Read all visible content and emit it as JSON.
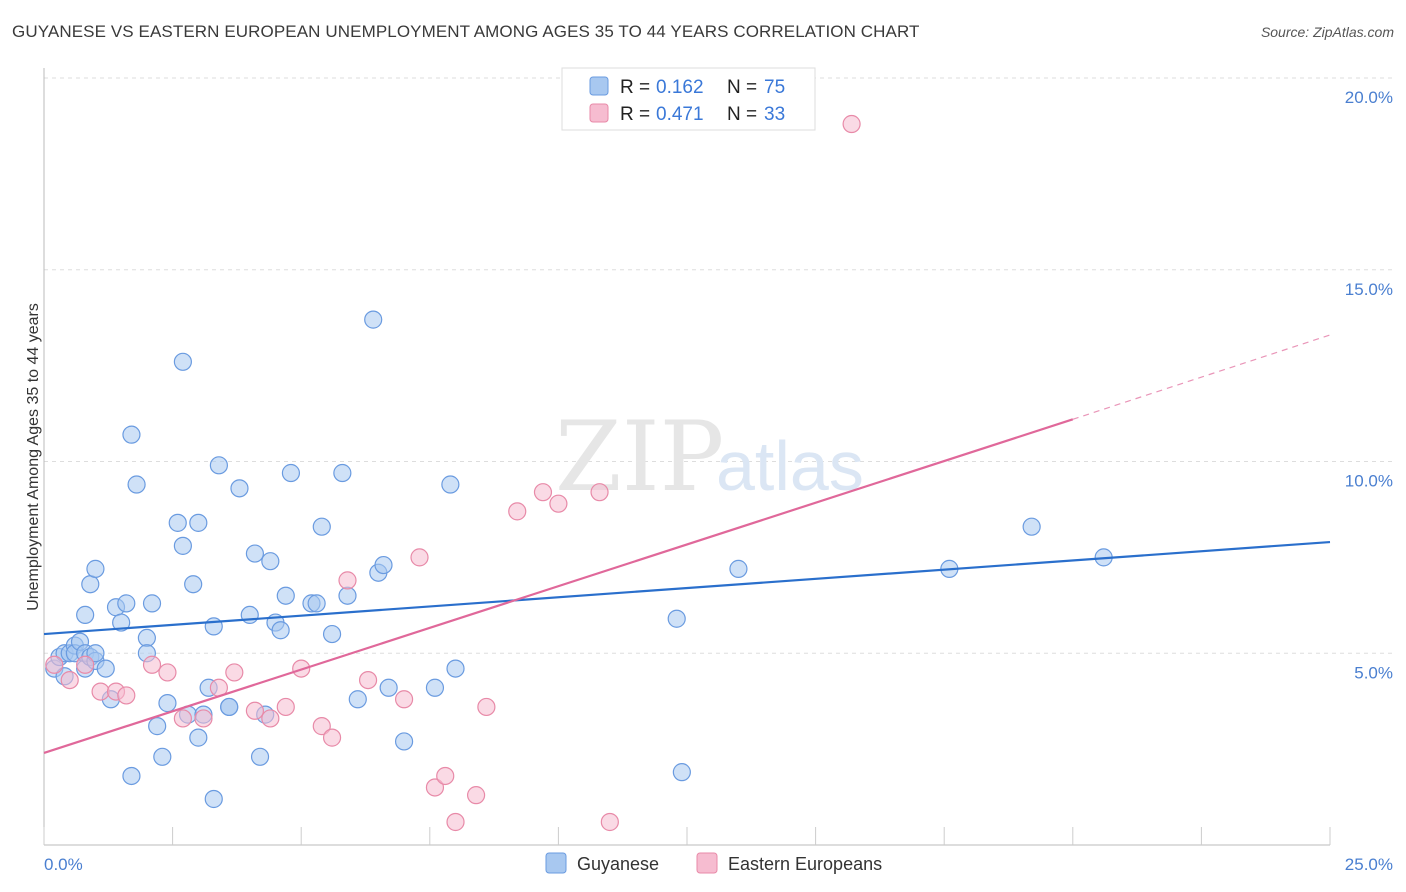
{
  "title": "GUYANESE VS EASTERN EUROPEAN UNEMPLOYMENT AMONG AGES 35 TO 44 YEARS CORRELATION CHART",
  "source": "Source: ZipAtlas.com",
  "watermark": {
    "zip": "ZIP",
    "atlas": "atlas"
  },
  "colors": {
    "blue_fill": "#a8c8f0",
    "blue_stroke": "#6a9be0",
    "blue_line": "#2a6fcc",
    "pink_fill": "#f6bcd0",
    "pink_stroke": "#e88aa8",
    "pink_line": "#e0689a",
    "grid": "#dddddd",
    "axis_text": "#4a7fd0"
  },
  "legend": {
    "rows": [
      {
        "r_label": "R =",
        "r_value": "0.162",
        "n_label": "N =",
        "n_value": "75"
      },
      {
        "r_label": "R =",
        "r_value": "0.471",
        "n_label": "N =",
        "n_value": "33"
      }
    ]
  },
  "chart_data": {
    "type": "scatter",
    "xlabel": "",
    "ylabel": "Unemployment Among Ages 35 to 44 years",
    "xlim": [
      0,
      25
    ],
    "ylim": [
      0,
      20
    ],
    "x_tick_labels": [
      "0.0%",
      "25.0%"
    ],
    "y_ticks": [
      5,
      10,
      15,
      20
    ],
    "y_tick_labels": [
      "5.0%",
      "10.0%",
      "15.0%",
      "20.0%"
    ],
    "grid": true,
    "legend_position": "bottom",
    "series": [
      {
        "name": "Guyanese",
        "r": 0.162,
        "n": 75,
        "trend": {
          "x0": 0,
          "y0": 5.5,
          "x1": 25,
          "y1": 7.9
        },
        "points": [
          [
            0.2,
            4.6
          ],
          [
            0.3,
            4.9
          ],
          [
            0.4,
            5.0
          ],
          [
            0.5,
            5.0
          ],
          [
            0.6,
            5.2
          ],
          [
            0.6,
            5.0
          ],
          [
            0.7,
            5.3
          ],
          [
            0.8,
            4.6
          ],
          [
            0.8,
            5.0
          ],
          [
            0.9,
            4.9
          ],
          [
            1.0,
            4.8
          ],
          [
            1.0,
            5.0
          ],
          [
            1.2,
            4.6
          ],
          [
            1.3,
            3.8
          ],
          [
            0.8,
            6.0
          ],
          [
            0.9,
            6.8
          ],
          [
            1.0,
            7.2
          ],
          [
            1.4,
            6.2
          ],
          [
            1.5,
            5.8
          ],
          [
            1.6,
            6.3
          ],
          [
            1.7,
            10.7
          ],
          [
            1.8,
            9.4
          ],
          [
            2.0,
            5.4
          ],
          [
            2.0,
            5.0
          ],
          [
            2.1,
            6.3
          ],
          [
            2.2,
            3.1
          ],
          [
            2.3,
            2.3
          ],
          [
            2.4,
            3.7
          ],
          [
            2.6,
            8.4
          ],
          [
            2.7,
            7.8
          ],
          [
            2.7,
            12.6
          ],
          [
            2.8,
            3.4
          ],
          [
            2.9,
            6.8
          ],
          [
            3.0,
            2.8
          ],
          [
            3.0,
            8.4
          ],
          [
            3.1,
            3.4
          ],
          [
            3.2,
            4.1
          ],
          [
            3.3,
            1.2
          ],
          [
            3.3,
            5.7
          ],
          [
            3.4,
            9.9
          ],
          [
            3.6,
            3.6
          ],
          [
            3.6,
            3.6
          ],
          [
            3.8,
            9.3
          ],
          [
            4.0,
            6.0
          ],
          [
            4.1,
            7.6
          ],
          [
            4.2,
            2.3
          ],
          [
            4.3,
            3.4
          ],
          [
            4.4,
            7.4
          ],
          [
            4.5,
            5.8
          ],
          [
            4.6,
            5.6
          ],
          [
            4.7,
            6.5
          ],
          [
            4.8,
            9.7
          ],
          [
            5.2,
            6.3
          ],
          [
            5.3,
            6.3
          ],
          [
            5.4,
            8.3
          ],
          [
            5.6,
            5.5
          ],
          [
            5.8,
            9.7
          ],
          [
            5.9,
            6.5
          ],
          [
            6.1,
            3.8
          ],
          [
            6.4,
            13.7
          ],
          [
            6.5,
            7.1
          ],
          [
            6.6,
            7.3
          ],
          [
            6.7,
            4.1
          ],
          [
            7.0,
            2.7
          ],
          [
            7.6,
            4.1
          ],
          [
            7.9,
            9.4
          ],
          [
            8.0,
            4.6
          ],
          [
            12.3,
            5.9
          ],
          [
            12.4,
            1.9
          ],
          [
            13.5,
            7.2
          ],
          [
            17.6,
            7.2
          ],
          [
            19.2,
            8.3
          ],
          [
            20.6,
            7.5
          ],
          [
            1.7,
            1.8
          ],
          [
            0.4,
            4.4
          ]
        ]
      },
      {
        "name": "Eastern Europeans",
        "r": 0.471,
        "n": 33,
        "trend": {
          "x0": 0,
          "y0": 2.4,
          "x1": 20,
          "y1": 11.1,
          "dash_to_x": 25,
          "dash_to_y": 13.3
        },
        "points": [
          [
            0.2,
            4.7
          ],
          [
            0.5,
            4.3
          ],
          [
            0.8,
            4.7
          ],
          [
            1.1,
            4.0
          ],
          [
            1.4,
            4.0
          ],
          [
            1.6,
            3.9
          ],
          [
            2.1,
            4.7
          ],
          [
            2.4,
            4.5
          ],
          [
            2.7,
            3.3
          ],
          [
            3.1,
            3.3
          ],
          [
            3.4,
            4.1
          ],
          [
            3.7,
            4.5
          ],
          [
            4.1,
            3.5
          ],
          [
            4.4,
            3.3
          ],
          [
            4.7,
            3.6
          ],
          [
            5.0,
            4.6
          ],
          [
            5.4,
            3.1
          ],
          [
            5.6,
            2.8
          ],
          [
            5.9,
            6.9
          ],
          [
            6.3,
            4.3
          ],
          [
            7.0,
            3.8
          ],
          [
            7.3,
            7.5
          ],
          [
            7.6,
            1.5
          ],
          [
            7.8,
            1.8
          ],
          [
            8.0,
            0.6
          ],
          [
            8.4,
            1.3
          ],
          [
            8.6,
            3.6
          ],
          [
            9.2,
            8.7
          ],
          [
            9.7,
            9.2
          ],
          [
            10.0,
            8.9
          ],
          [
            10.8,
            9.2
          ],
          [
            11.0,
            0.6
          ],
          [
            15.7,
            18.8
          ]
        ]
      }
    ]
  }
}
